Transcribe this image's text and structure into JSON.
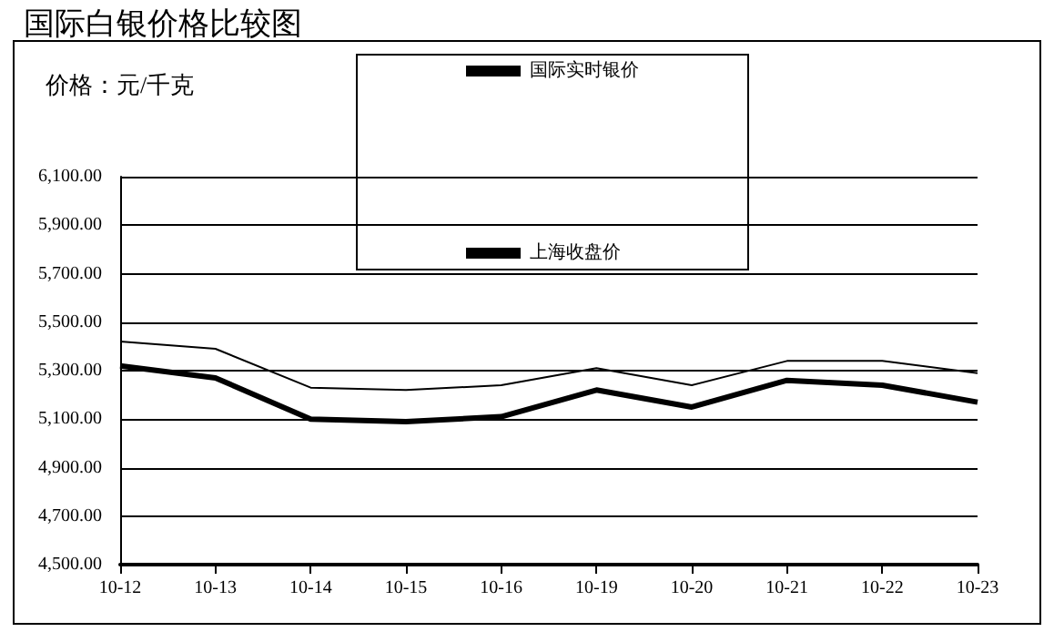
{
  "chart_data": {
    "type": "line",
    "title": "国际白银价格比较图",
    "ylabel": "价格：元/千克",
    "categories": [
      "10-12",
      "10-13",
      "10-14",
      "10-15",
      "10-16",
      "10-19",
      "10-20",
      "10-21",
      "10-22",
      "10-23"
    ],
    "series": [
      {
        "name": "国际实时银价",
        "color": "#000000",
        "values": [
          5420,
          5390,
          5230,
          5220,
          5240,
          5310,
          5240,
          5340,
          5340,
          5290
        ]
      },
      {
        "name": "上海收盘价",
        "color": "#000000",
        "values": [
          5320,
          5270,
          5100,
          5090,
          5110,
          5220,
          5150,
          5260,
          5240,
          5170
        ]
      }
    ],
    "ylim": [
      4500,
      6100
    ],
    "yticks": [
      {
        "value": 4500,
        "label": "4,500.00"
      },
      {
        "value": 4700,
        "label": "4,700.00"
      },
      {
        "value": 4900,
        "label": "4,900.00"
      },
      {
        "value": 5100,
        "label": "5,100.00"
      },
      {
        "value": 5300,
        "label": "5,300.00"
      },
      {
        "value": 5500,
        "label": "5,500.00"
      },
      {
        "value": 5700,
        "label": "5,700.00"
      },
      {
        "value": 5900,
        "label": "5,900.00"
      },
      {
        "value": 6100,
        "label": "6,100.00"
      }
    ],
    "grid": "y",
    "legend": "top",
    "marker": "none",
    "line_style": "solid"
  }
}
